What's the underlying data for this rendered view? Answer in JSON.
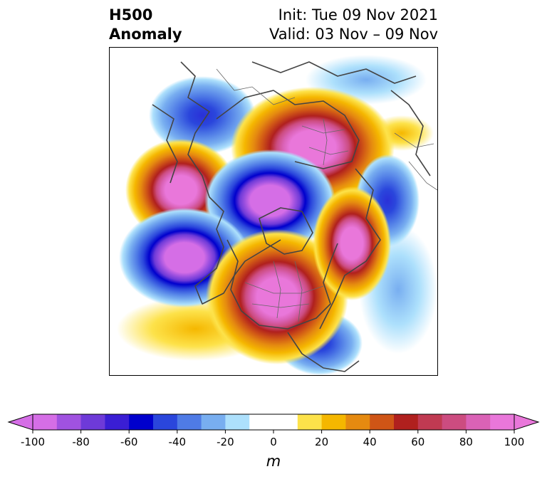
{
  "header": {
    "title_line1": "H500",
    "title_line2": "Anomaly",
    "init": "Init: Tue 09 Nov 2021",
    "valid": "Valid: 03 Nov – 09 Nov"
  },
  "map": {
    "projection": "north-polar-stereographic",
    "variable": "500 hPa geopotential height anomaly",
    "coastline_color": "#444444"
  },
  "colorbar": {
    "unit_label": "m",
    "min": -100,
    "max": 100,
    "step": 10,
    "tick_labels": [
      "-100",
      "-80",
      "-60",
      "-40",
      "-20",
      "0",
      "20",
      "40",
      "60",
      "80",
      "100"
    ],
    "colors": [
      "#d56ee6",
      "#a052e0",
      "#6e3ad8",
      "#3a1ed4",
      "#0000cd",
      "#2a46dc",
      "#4f7be6",
      "#78aef0",
      "#ade0fc",
      "#ffffff",
      "#ffffff",
      "#fde24a",
      "#f5b700",
      "#e58a10",
      "#cf5516",
      "#b0201e",
      "#c03a52",
      "#cc4c80",
      "#da62b6",
      "#e977da"
    ],
    "extend": "both"
  }
}
